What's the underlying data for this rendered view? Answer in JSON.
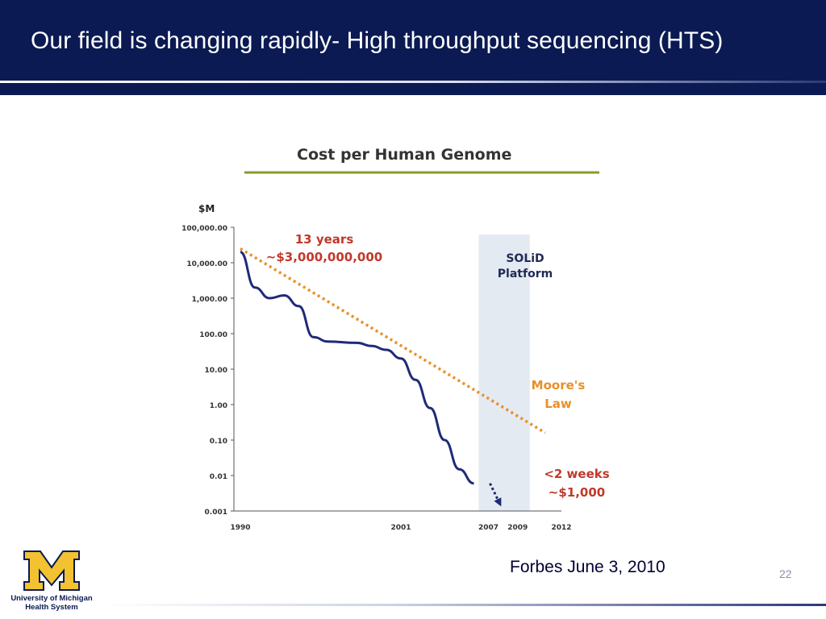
{
  "slide": {
    "title": "Our field is changing rapidly- High throughput sequencing (HTS)",
    "source_note": "Forbes June 3, 2010",
    "page_number": "22",
    "logo": {
      "line1": "University of Michigan",
      "line2": "Health System",
      "navy": "#0b1a52",
      "maize": "#f2c230"
    }
  },
  "chart_data": {
    "type": "line",
    "title": "Cost per Human Genome",
    "ylabel": "$M",
    "yscale": "log",
    "ylim": [
      0.001,
      100000
    ],
    "yticks": [
      "100,000.00",
      "10,000.00",
      "1,000.00",
      "100.00",
      "10.00",
      "1.00",
      "0.10",
      "0.01",
      "0.001"
    ],
    "ytick_values": [
      100000,
      10000,
      1000,
      100,
      10,
      1,
      0.1,
      0.01,
      0.001
    ],
    "xlim": [
      1990,
      2012
    ],
    "xticks": [
      1990,
      2001,
      2007,
      2009,
      2012
    ],
    "series": [
      {
        "name": "",
        "color": "#1f2a78",
        "points": [
          [
            1990,
            20000
          ],
          [
            1991,
            2000
          ],
          [
            1992,
            1000
          ],
          [
            1993,
            1200
          ],
          [
            1994,
            600
          ],
          [
            1995,
            80
          ],
          [
            1996,
            60
          ],
          [
            1998,
            55
          ],
          [
            1999,
            45
          ],
          [
            2000,
            35
          ],
          [
            2001,
            20
          ],
          [
            2002,
            5
          ],
          [
            2003,
            0.8
          ],
          [
            2004,
            0.1
          ],
          [
            2005,
            0.015
          ],
          [
            2006,
            0.006
          ]
        ]
      },
      {
        "name": "Moore's Law",
        "color": "#e8902a",
        "points": [
          [
            1990,
            25000
          ],
          [
            2012,
            0.3
          ]
        ]
      }
    ],
    "projection": {
      "points": [
        [
          2006,
          0.006
        ],
        [
          2007,
          0.002
        ]
      ],
      "color": "#1f2a78"
    },
    "shaded_region": {
      "x0": 2006,
      "x1": 2009.5,
      "label_line1": "SOLiD",
      "label_line2": "Platform",
      "color": "#e4eaf1"
    },
    "annotations": {
      "start_line1": "13 years",
      "start_line2": "~$3,000,000,000",
      "end_line1": "<2 weeks",
      "end_line2": "~$1,000",
      "moore_line1": "Moore's",
      "moore_line2": "Law",
      "accent_red": "#c0392b",
      "accent_orange": "#e8902a",
      "title_rule_color": "#8a9a2a"
    }
  }
}
